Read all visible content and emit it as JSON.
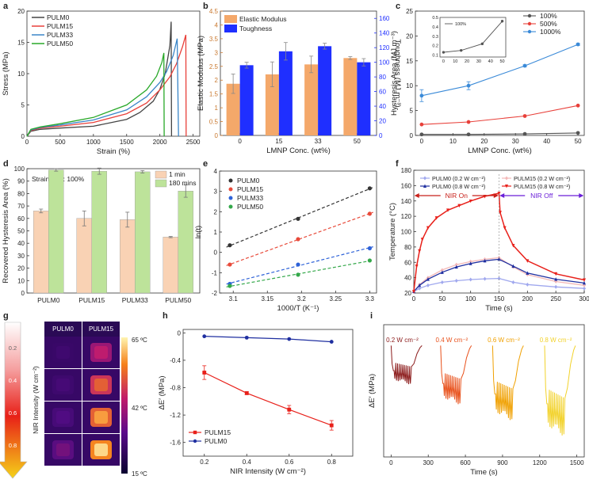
{
  "figure_title": "Multi-panel figure: PULM tensile, hysteresis and NIR photothermal characterization",
  "chart_data": [
    {
      "panel": "a",
      "type": "line",
      "title": "",
      "xlabel": "Strain (%)",
      "ylabel": "Stress (MPa)",
      "xlim": [
        0,
        2600
      ],
      "ylim": [
        0,
        20
      ],
      "xticks": [
        0,
        500,
        1000,
        1500,
        2000,
        2500
      ],
      "yticks": [
        0,
        5,
        10,
        15,
        20
      ],
      "legend": "top-left",
      "series": [
        {
          "name": "PULM0",
          "color": "#444444",
          "x": [
            0,
            60,
            200,
            500,
            1000,
            1500,
            1700,
            1900,
            2000,
            2080,
            2150,
            2170,
            2175
          ],
          "y": [
            0,
            0.8,
            1.1,
            1.3,
            1.6,
            2.7,
            3.8,
            5.6,
            7.5,
            10,
            14.5,
            18.3,
            0
          ]
        },
        {
          "name": "PULM15",
          "color": "#e8403a",
          "x": [
            0,
            60,
            200,
            500,
            1000,
            1500,
            1800,
            2000,
            2150,
            2250,
            2340,
            2390,
            2395
          ],
          "y": [
            0,
            0.9,
            1.3,
            1.6,
            2.2,
            3.6,
            5.3,
            7.4,
            9.5,
            11.6,
            14.3,
            16.2,
            0
          ]
        },
        {
          "name": "PULM33",
          "color": "#3a86c8",
          "x": [
            0,
            60,
            200,
            500,
            1000,
            1500,
            1800,
            2000,
            2100,
            2200,
            2260,
            2280
          ],
          "y": [
            0,
            1.0,
            1.4,
            1.8,
            2.6,
            4.2,
            6.3,
            8.6,
            10.3,
            12.9,
            15.6,
            0
          ]
        },
        {
          "name": "PULM50",
          "color": "#28a828",
          "x": [
            0,
            60,
            200,
            500,
            1000,
            1500,
            1800,
            1950,
            2030,
            2060,
            2065
          ],
          "y": [
            0,
            1.1,
            1.5,
            2.0,
            3.0,
            5.0,
            7.4,
            9.6,
            11.8,
            13.3,
            0
          ]
        }
      ]
    },
    {
      "panel": "b",
      "type": "bar",
      "title": "",
      "xlabel": "LMNP Conc. (wt%)",
      "ylabel": "Elastic Modulus (MPa)",
      "ylabel2": "Toughness (MJ m⁻³)",
      "categories": [
        "0",
        "15",
        "33",
        "50"
      ],
      "ylim": [
        0,
        4.5
      ],
      "ylim2": [
        0,
        170
      ],
      "yticks": [
        0,
        0.5,
        1,
        1.5,
        2,
        2.5,
        3,
        3.5,
        4,
        4.5
      ],
      "yticks2": [
        0,
        20,
        40,
        60,
        80,
        100,
        120,
        140,
        160
      ],
      "legend": "top-left",
      "series": [
        {
          "name": "Elastic Modulus",
          "color": "#f4a86a",
          "axis": "left",
          "values": [
            1.87,
            2.21,
            2.57,
            2.8
          ],
          "errors": [
            0.35,
            0.45,
            0.3,
            0.05
          ]
        },
        {
          "name": "Toughness",
          "color": "#1f2fff",
          "axis": "right",
          "values": [
            96,
            115,
            122,
            100
          ],
          "errors": [
            4,
            12,
            4,
            5
          ]
        }
      ]
    },
    {
      "panel": "c",
      "type": "line",
      "title": "",
      "xlabel": "LMNP Conc. (wt%)",
      "ylabel": "Hysteresis Area (MJ m⁻³)",
      "x": [
        0,
        15,
        33,
        50
      ],
      "xlim": [
        -2,
        52
      ],
      "ylim": [
        0,
        25
      ],
      "xticks": [
        0,
        10,
        20,
        30,
        40,
        50
      ],
      "yticks": [
        0,
        5,
        10,
        15,
        20,
        25
      ],
      "legend": "top-right",
      "series": [
        {
          "name": "100%",
          "color": "#555555",
          "values": [
            0.2,
            0.2,
            0.3,
            0.5
          ]
        },
        {
          "name": "500%",
          "color": "#e8403a",
          "values": [
            2.2,
            2.7,
            3.9,
            6.0
          ]
        },
        {
          "name": "1000%",
          "color": "#3a8ad8",
          "values": [
            8.0,
            10.0,
            14.0,
            18.3
          ],
          "errors": [
            1.2,
            0.8,
            0.2,
            0.2
          ]
        }
      ],
      "inset": {
        "legend": "100%",
        "x": [
          0,
          15,
          33,
          50
        ],
        "values": [
          0.13,
          0.15,
          0.22,
          0.46
        ],
        "xticks": [
          0,
          10,
          20,
          30,
          40,
          50
        ],
        "yticks": [
          0.1,
          0.2,
          0.3,
          0.4,
          0.5
        ],
        "ylim": [
          0.08,
          0.5
        ]
      }
    },
    {
      "panel": "d",
      "type": "bar",
      "title": "",
      "annotation": "Strain limit: 100%",
      "xlabel": "",
      "ylabel": "Recovered Hysteresis Area (%)",
      "categories": [
        "PULM0",
        "PULM15",
        "PULM33",
        "PULM50"
      ],
      "ylim": [
        0,
        100
      ],
      "yticks": [
        0,
        10,
        20,
        30,
        40,
        50,
        60,
        70,
        80,
        90,
        100
      ],
      "legend": "top-right",
      "series": [
        {
          "name": "1 min",
          "color": "#f9d2b4",
          "values": [
            66,
            60,
            59,
            45
          ],
          "errors": [
            1.5,
            6,
            6,
            0.5
          ]
        },
        {
          "name": "180 mins",
          "color": "#bde39a",
          "values": [
            99,
            98,
            97.5,
            82
          ],
          "errors": [
            1,
            2.5,
            1,
            5
          ]
        }
      ]
    },
    {
      "panel": "e",
      "type": "scatter",
      "title": "",
      "xlabel": "1000/T (K⁻¹)",
      "ylabel": "ln(t)",
      "xlim": [
        3.08,
        3.31
      ],
      "ylim": [
        -2,
        4
      ],
      "xticks": [
        3.1,
        3.15,
        3.2,
        3.25,
        3.3
      ],
      "yticks": [
        -2,
        -1,
        0,
        1,
        2,
        3,
        4
      ],
      "legend": "top-left",
      "series": [
        {
          "name": "PULM0",
          "color": "#333333",
          "x": [
            3.095,
            3.195,
            3.3
          ],
          "y": [
            0.35,
            1.65,
            3.15
          ]
        },
        {
          "name": "PULM15",
          "color": "#e84a3a",
          "x": [
            3.095,
            3.195,
            3.3
          ],
          "y": [
            -0.6,
            0.65,
            1.9
          ]
        },
        {
          "name": "PULM33",
          "color": "#2e62d8",
          "x": [
            3.095,
            3.195,
            3.3
          ],
          "y": [
            -1.55,
            -0.6,
            0.2
          ]
        },
        {
          "name": "PULM50",
          "color": "#34a84a",
          "x": [
            3.095,
            3.195,
            3.3
          ],
          "y": [
            -1.65,
            -1.1,
            -0.4
          ]
        }
      ]
    },
    {
      "panel": "f",
      "type": "line",
      "title": "",
      "xlabel": "Time (s)",
      "ylabel": "Temperature (°C)",
      "xlim": [
        0,
        300
      ],
      "ylim": [
        20,
        180
      ],
      "xticks": [
        0,
        50,
        100,
        150,
        200,
        250,
        300
      ],
      "yticks": [
        20,
        40,
        60,
        80,
        100,
        120,
        140,
        160,
        180
      ],
      "annotations": [
        "NIR On",
        "NIR Off"
      ],
      "legend": "top",
      "series": [
        {
          "name": "PULM0 (0.2 W cm⁻²)",
          "color": "#a0a8ee",
          "x": [
            0,
            10,
            25,
            50,
            75,
            100,
            125,
            150,
            175,
            200,
            250,
            300
          ],
          "y": [
            22,
            26,
            30,
            34,
            36,
            37.5,
            38.5,
            39,
            34,
            31,
            28,
            26
          ]
        },
        {
          "name": "PULM15 (0.2 W cm⁻²)",
          "color": "#f3b8b8",
          "x": [
            0,
            10,
            25,
            50,
            75,
            100,
            125,
            150,
            175,
            200,
            250,
            300
          ],
          "y": [
            22,
            31,
            40,
            50,
            57,
            61,
            64,
            66,
            54,
            44,
            35,
            30
          ]
        },
        {
          "name": "PULM0 (0.8 W cm⁻²)",
          "color": "#1f2fa0",
          "x": [
            0,
            10,
            25,
            50,
            75,
            100,
            125,
            150,
            175,
            200,
            250,
            300
          ],
          "y": [
            22,
            30,
            38,
            47,
            54,
            58.5,
            62,
            64,
            55,
            46,
            38,
            33
          ]
        },
        {
          "name": "PULM15 (0.8 W cm⁻²)",
          "color": "#e8201a",
          "x": [
            0,
            5,
            10,
            15,
            25,
            40,
            60,
            80,
            100,
            125,
            150,
            152,
            160,
            175,
            200,
            250,
            300
          ],
          "y": [
            22,
            55,
            75,
            90,
            105,
            118,
            128,
            134,
            140,
            146,
            150,
            125,
            105,
            82,
            62,
            45,
            37
          ]
        }
      ]
    },
    {
      "panel": "g",
      "type": "heatmap",
      "title": "",
      "ylabel": "NIR Intensity (W cm⁻²)",
      "columns": [
        "PULM0",
        "PULM15"
      ],
      "rows": [
        "0.2",
        "0.4",
        "0.6",
        "0.8"
      ],
      "colorbar": [
        "65 ºC",
        "42 ºC",
        "15 ºC"
      ],
      "values": [
        [
          0.22,
          0.55
        ],
        [
          0.25,
          0.72
        ],
        [
          0.3,
          0.85
        ],
        [
          0.38,
          0.95
        ]
      ]
    },
    {
      "panel": "h",
      "type": "line",
      "title": "",
      "xlabel": "NIR Intensity (W cm⁻²)",
      "ylabel": "ΔE′ (MPa)",
      "x": [
        0.2,
        0.4,
        0.6,
        0.8
      ],
      "xlim": [
        0.1,
        0.9
      ],
      "ylim": [
        -1.8,
        0.05
      ],
      "xticks": [
        0.2,
        0.4,
        0.6,
        0.8
      ],
      "yticks": [
        -1.6,
        -1.2,
        -0.8,
        -0.4,
        0.0
      ],
      "legend": "bottom-left",
      "series": [
        {
          "name": "PULM15",
          "color": "#e8201a",
          "values": [
            -0.58,
            -0.88,
            -1.12,
            -1.35
          ],
          "errors": [
            0.1,
            0.02,
            0.06,
            0.07
          ]
        },
        {
          "name": "PULM0",
          "color": "#1f2fa0",
          "values": [
            -0.05,
            -0.07,
            -0.09,
            -0.13
          ]
        }
      ]
    },
    {
      "panel": "i",
      "type": "line",
      "title": "",
      "xlabel": "Time (s)",
      "ylabel": "ΔE′ (MPa)",
      "xlim": [
        -60,
        1560
      ],
      "xticks": [
        0,
        300,
        600,
        900,
        1200,
        1500
      ],
      "labels": [
        "0.2 W cm⁻²",
        "0.4 W cm⁻²",
        "0.6 W cm⁻²",
        "0.8 W cm⁻²"
      ],
      "series": [
        {
          "name": "0.2 W cm⁻²",
          "color": "#8b1a1a",
          "start": 0,
          "depth": 0.58,
          "cycles": 10
        },
        {
          "name": "0.4 W cm⁻²",
          "color": "#e8501a",
          "start": 400,
          "depth": 0.88,
          "cycles": 10
        },
        {
          "name": "0.6 W cm⁻²",
          "color": "#f0a000",
          "start": 820,
          "depth": 1.12,
          "cycles": 10
        },
        {
          "name": "0.8 W cm⁻²",
          "color": "#f2d22a",
          "start": 1240,
          "depth": 1.35,
          "cycles": 10
        }
      ]
    }
  ]
}
